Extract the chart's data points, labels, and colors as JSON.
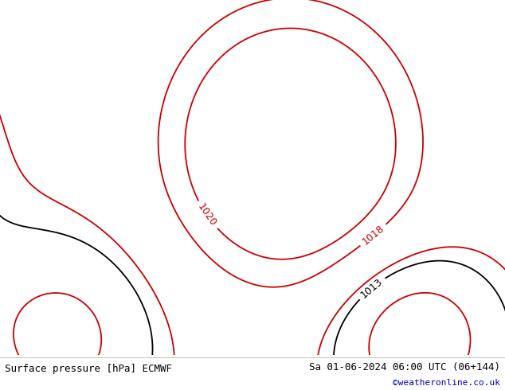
{
  "title_left": "Surface pressure [hPa] ECMWF",
  "title_right": "Sa 01-06-2024 06:00 UTC (06+144)",
  "credit": "©weatheronline.co.uk",
  "bg_color": "#e0e0e0",
  "land_color": "#c8f0a0",
  "border_color": "#888888",
  "sea_color": "#e0e0e0",
  "contour_color_red": "#cc0000",
  "contour_color_black": "#000000",
  "contour_color_blue": "#2255cc",
  "font_size_labels": 9,
  "font_size_footer": 9,
  "figsize": [
    6.34,
    4.9
  ],
  "dpi": 100,
  "extent": [
    -15.0,
    25.0,
    43.0,
    65.0
  ]
}
